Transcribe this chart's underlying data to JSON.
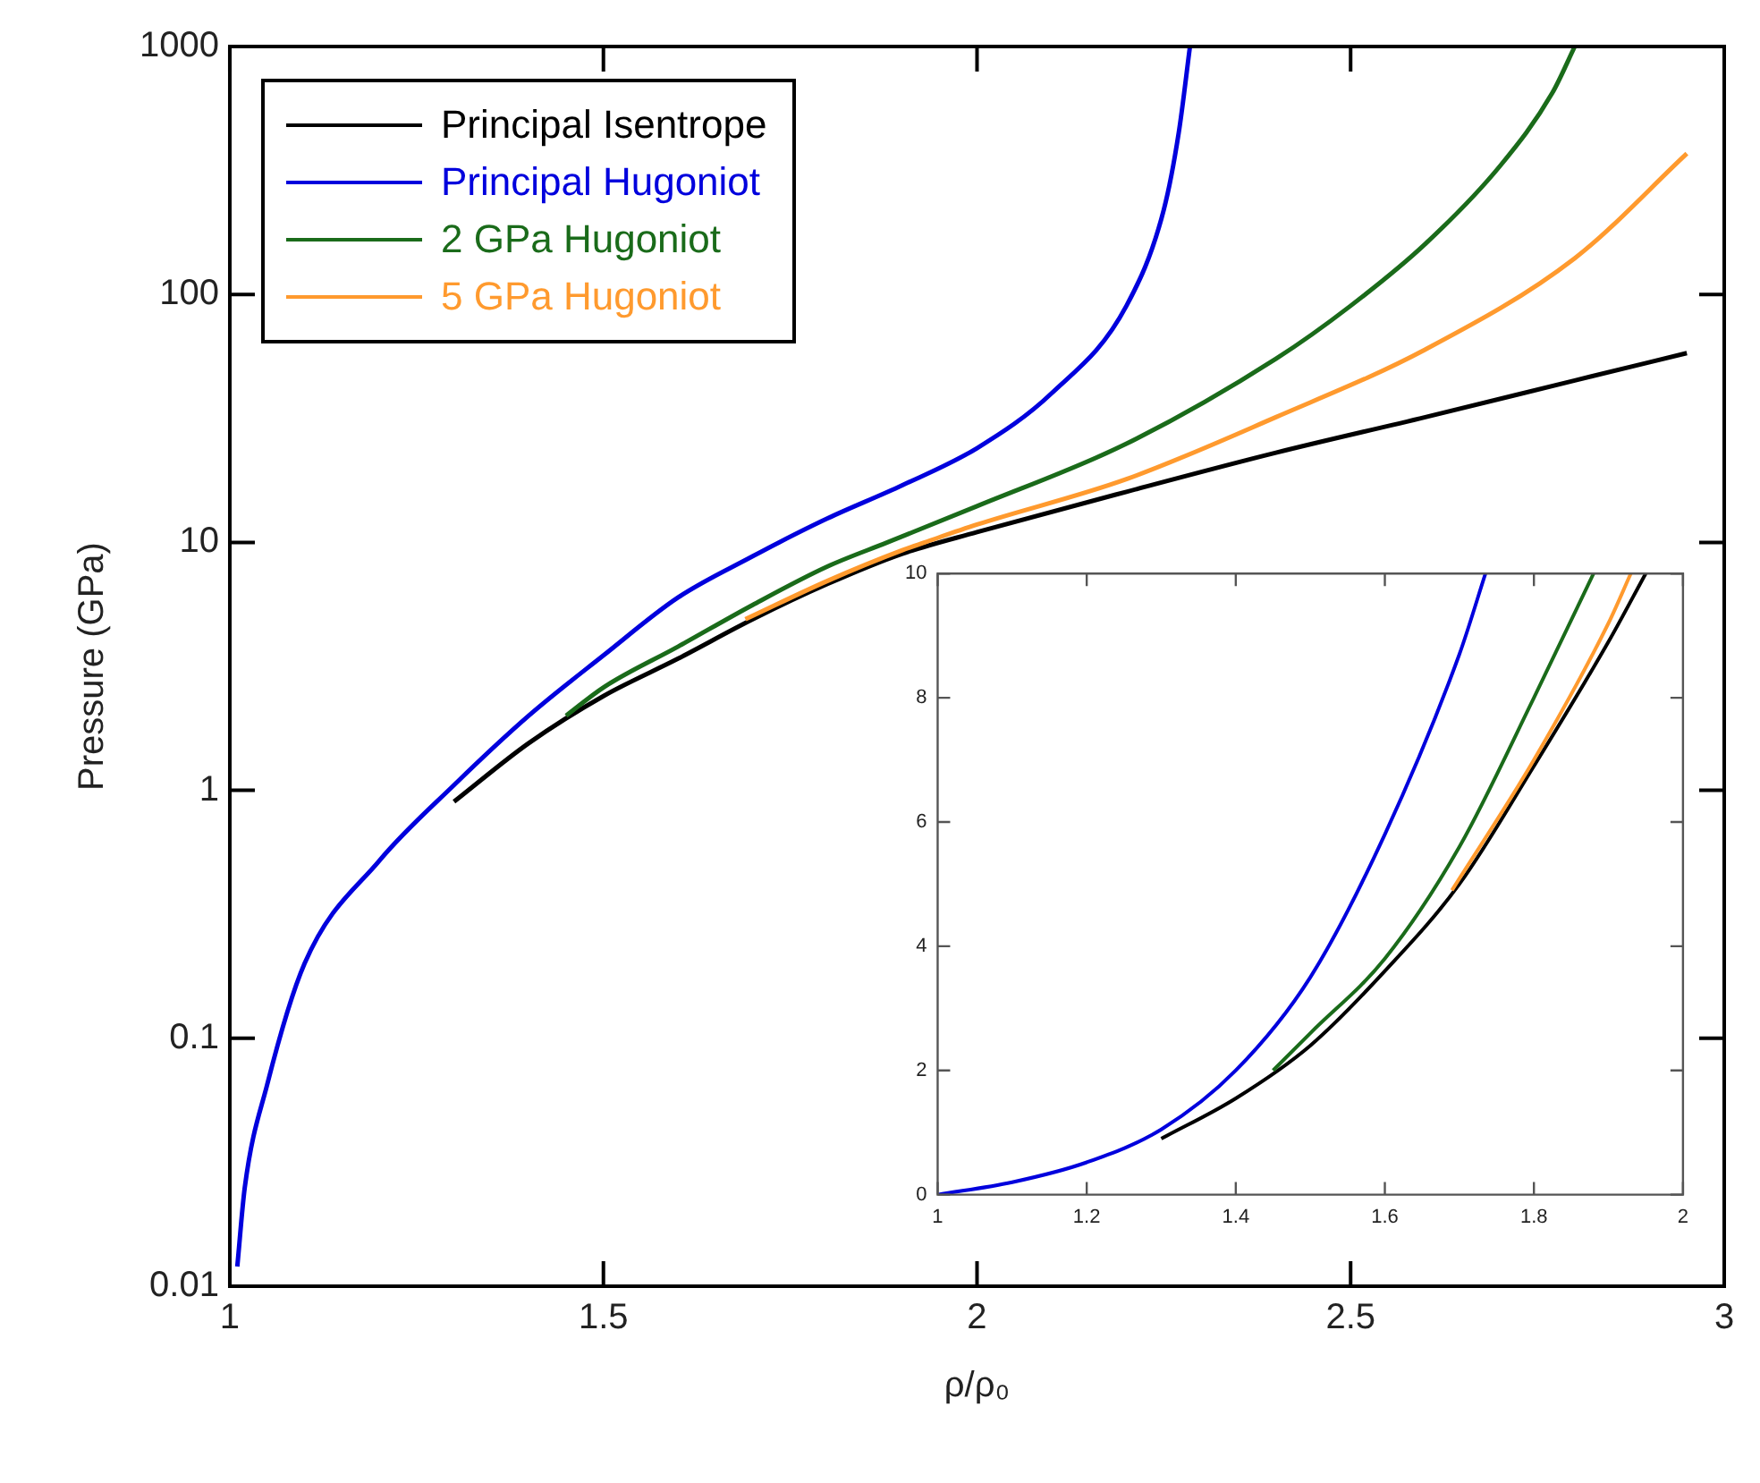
{
  "chart_data": [
    {
      "type": "line",
      "xlabel": "ρ/ρ₀",
      "ylabel": "Pressure (GPa)",
      "xlim": [
        1,
        3
      ],
      "xticks": [
        1,
        1.5,
        2,
        2.5,
        3
      ],
      "ylim": [
        0.01,
        1000
      ],
      "yticks": [
        0.01,
        0.1,
        1,
        10,
        100,
        1000
      ],
      "log": "y",
      "legend": "top left",
      "marker": "none",
      "series": [
        {
          "name": "Principal Isentrope",
          "color": "#000000",
          "x": [
            1.3,
            1.4,
            1.5,
            1.6,
            1.7,
            1.8,
            1.9,
            2.0,
            2.2,
            2.4,
            2.6,
            2.8,
            2.95
          ],
          "values": [
            0.9,
            1.55,
            2.4,
            3.4,
            4.9,
            6.8,
            9.0,
            11,
            16,
            23,
            32,
            45,
            58
          ]
        },
        {
          "name": "Principal Hugoniot",
          "color": "#0000dd",
          "x": [
            1.01,
            1.02,
            1.05,
            1.1,
            1.2,
            1.3,
            1.4,
            1.5,
            1.6,
            1.7,
            1.735,
            1.8,
            1.9,
            2.0,
            2.1,
            2.2,
            2.25,
            2.27,
            2.285
          ],
          "values": [
            0.012,
            0.025,
            0.065,
            0.2,
            0.52,
            1.05,
            2.0,
            3.5,
            6.0,
            8.8,
            10,
            12.5,
            17,
            24,
            40,
            90,
            220,
            450,
            1000
          ]
        },
        {
          "name": "2 GPa Hugoniot",
          "color": "#1a6b1a",
          "x": [
            1.45,
            1.5,
            1.6,
            1.7,
            1.8,
            1.88,
            2.0,
            2.2,
            2.4,
            2.5,
            2.6,
            2.7,
            2.77,
            2.8
          ],
          "values": [
            2.0,
            2.6,
            3.8,
            5.6,
            8.0,
            10,
            14,
            25,
            55,
            90,
            160,
            330,
            650,
            1000
          ]
        },
        {
          "name": "5 GPa Hugoniot",
          "color": "#ff9a2e",
          "x": [
            1.69,
            1.8,
            1.9,
            1.93,
            2.0,
            2.2,
            2.4,
            2.6,
            2.8,
            2.95
          ],
          "values": [
            4.9,
            7.0,
            9.3,
            10,
            11.8,
            18,
            32,
            60,
            140,
            370
          ]
        }
      ]
    },
    {
      "type": "line",
      "xlim": [
        1,
        2
      ],
      "xticks": [
        1,
        1.2,
        1.4,
        1.6,
        1.8,
        2
      ],
      "ylim": [
        0,
        10
      ],
      "yticks": [
        0,
        2,
        4,
        6,
        8,
        10
      ],
      "marker": "none",
      "series": [
        {
          "color": "#000000",
          "x": [
            1.3,
            1.4,
            1.5,
            1.6,
            1.7,
            1.8,
            1.9,
            1.95
          ],
          "values": [
            0.9,
            1.55,
            2.4,
            3.6,
            5.0,
            6.9,
            8.9,
            10
          ]
        },
        {
          "color": "#0000dd",
          "x": [
            1.0,
            1.1,
            1.2,
            1.3,
            1.4,
            1.5,
            1.6,
            1.7,
            1.735
          ],
          "values": [
            0,
            0.2,
            0.52,
            1.05,
            2.0,
            3.5,
            5.8,
            8.7,
            10
          ]
        },
        {
          "color": "#1a6b1a",
          "x": [
            1.45,
            1.5,
            1.6,
            1.7,
            1.8,
            1.88
          ],
          "values": [
            2.0,
            2.6,
            3.8,
            5.6,
            8.0,
            10
          ]
        },
        {
          "color": "#ff9a2e",
          "x": [
            1.69,
            1.8,
            1.9,
            1.93
          ],
          "values": [
            4.9,
            7.0,
            9.2,
            10
          ]
        }
      ]
    }
  ]
}
